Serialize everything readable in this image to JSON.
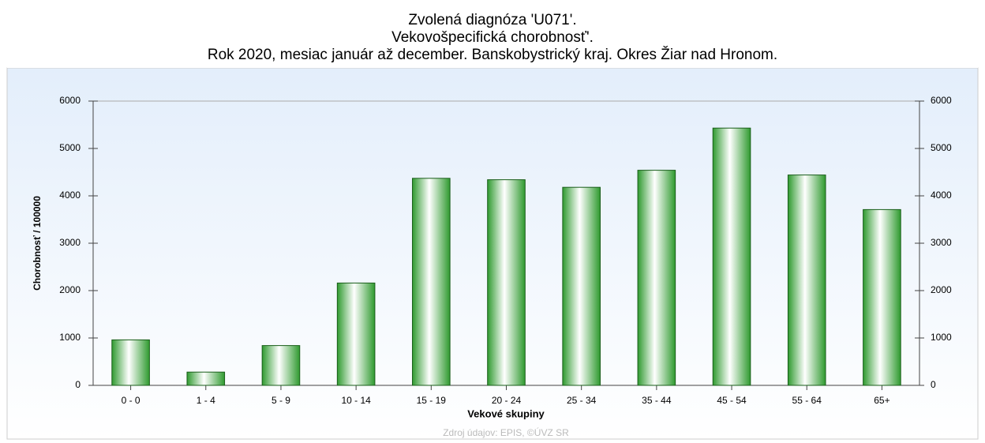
{
  "chart_data": {
    "type": "bar",
    "title": "Zvolená diagnóza 'U071'.",
    "subtitle": "Vekovošpecifická chorobnosť'.",
    "subtitle2": "Rok 2020, mesiac január až december. Banskobystrický kraj. Okres Žiar nad Hronom.",
    "ylabel": "Chorobnosť / 100000",
    "xlabel": "Vekové skupiny",
    "source": "Zdroj údajov: EPIS, ©ÚVZ SR",
    "categories": [
      "0 - 0",
      "1 - 4",
      "5 - 9",
      "10 - 14",
      "15 - 19",
      "20 - 24",
      "25 - 34",
      "35 - 44",
      "45 - 54",
      "55 - 64",
      "65+"
    ],
    "values": [
      960,
      280,
      840,
      2160,
      4370,
      4340,
      4180,
      4540,
      5430,
      4440,
      3710
    ],
    "color": "#2f9a2f",
    "ylim": [
      0,
      6000
    ],
    "yticks": [
      0,
      1000,
      2000,
      3000,
      4000,
      5000,
      6000
    ],
    "y2lim": [
      0,
      6000
    ],
    "y2ticks": [
      0,
      1000,
      2000,
      3000,
      4000,
      5000,
      6000
    ]
  }
}
